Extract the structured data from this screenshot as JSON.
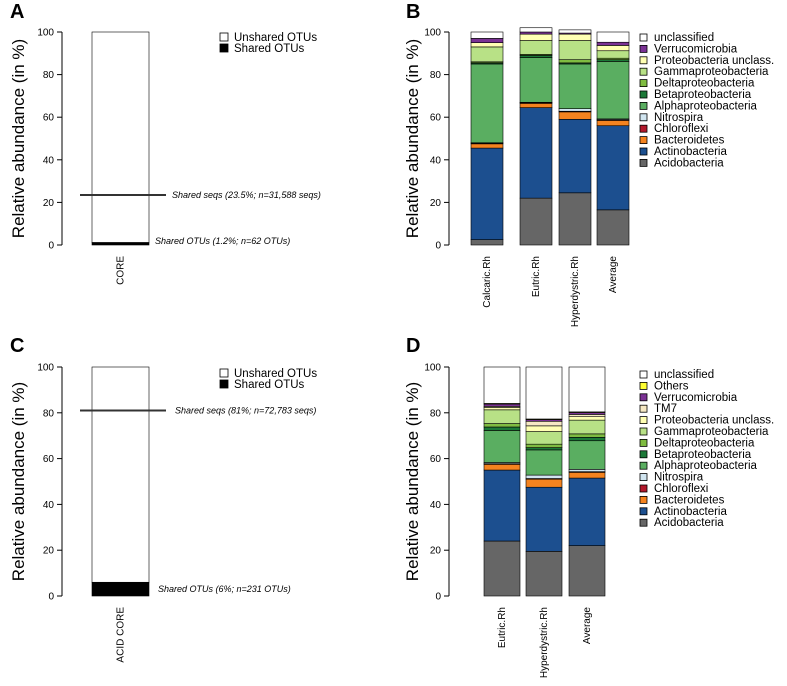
{
  "colors": {
    "unclassified": "#ffffff",
    "Others": "#ffff33",
    "Verrucomicrobia": "#7b3294",
    "TM7": "#f6e8c3",
    "Proteobacteria unclass.": "#ffffb3",
    "Gammaproteobacteria": "#b8e186",
    "Deltaproteobacteria": "#7fbc41",
    "Betaproteobacteria": "#1b7837",
    "Alphaproteobacteria": "#5aae61",
    "Nitrospira": "#d1e5f0",
    "Chloroflexi": "#b2182b",
    "Bacteroidetes": "#f4831f",
    "Actinobacteria": "#1c4f8f",
    "Acidobacteria": "#666666",
    "Unshared OTUs": "#ffffff",
    "Shared OTUs": "#000000"
  },
  "chart_data": [
    {
      "id": "A",
      "type": "bar",
      "letter": "A",
      "ylabel": "Relative abundance (in %)",
      "ylim": [
        0,
        100
      ],
      "yticks": [
        "0",
        "20",
        "40",
        "60",
        "80",
        "100"
      ],
      "categories": [
        "CORE"
      ],
      "series": [
        {
          "name": "Shared OTUs",
          "values": [
            1.2
          ]
        },
        {
          "name": "Unshared OTUs",
          "values": [
            98.8
          ]
        }
      ],
      "legend": [
        "Unshared OTUs",
        "Shared OTUs"
      ],
      "legend_position": "top-right",
      "reference_line": {
        "value": 23.5,
        "label": "Shared seqs (23.5%; n=31,588 seqs)"
      },
      "bar_annotation": "Shared OTUs (1.2%; n=62 OTUs)"
    },
    {
      "id": "B",
      "type": "bar",
      "letter": "B",
      "ylabel": "Relative abundance (in %)",
      "ylim": [
        0,
        100
      ],
      "yticks": [
        "0",
        "20",
        "40",
        "60",
        "80",
        "100"
      ],
      "categories": [
        "Calcaric.Rh",
        "Eutric.Rh",
        "Hyperdystric.Rh",
        "Average"
      ],
      "series": [
        {
          "name": "Acidobacteria",
          "values": [
            2.5,
            22,
            24.5,
            16.5
          ]
        },
        {
          "name": "Actinobacteria",
          "values": [
            43,
            42.5,
            34.5,
            39.5
          ]
        },
        {
          "name": "Bacteroidetes",
          "values": [
            2,
            2,
            3.5,
            2.5
          ]
        },
        {
          "name": "Chloroflexi",
          "values": [
            0.3,
            0.3,
            0.3,
            0.3
          ]
        },
        {
          "name": "Nitrospira",
          "values": [
            0.2,
            0.2,
            1.2,
            0.4
          ]
        },
        {
          "name": "Alphaproteobacteria",
          "values": [
            37,
            21,
            21,
            27
          ]
        },
        {
          "name": "Betaproteobacteria",
          "values": [
            0.5,
            1,
            0.5,
            0.8
          ]
        },
        {
          "name": "Deltaproteobacteria",
          "values": [
            0.5,
            0.5,
            1.5,
            0.7
          ]
        },
        {
          "name": "Gammaproteobacteria",
          "values": [
            7,
            6.5,
            9,
            3.5
          ]
        },
        {
          "name": "Proteobacteria unclass.",
          "values": [
            2,
            3,
            3,
            2.5
          ]
        },
        {
          "name": "Verrucomicrobia",
          "values": [
            2,
            1,
            0.5,
            1.5
          ]
        },
        {
          "name": "unclassified",
          "values": [
            3,
            2,
            1.5,
            4.8
          ]
        }
      ],
      "legend": [
        "unclassified",
        "Verrucomicrobia",
        "Proteobacteria unclass.",
        "Gammaproteobacteria",
        "Deltaproteobacteria",
        "Betaproteobacteria",
        "Alphaproteobacteria",
        "Nitrospira",
        "Chloroflexi",
        "Bacteroidetes",
        "Actinobacteria",
        "Acidobacteria"
      ],
      "legend_position": "right"
    },
    {
      "id": "C",
      "type": "bar",
      "letter": "C",
      "ylabel": "Relative abundance (in %)",
      "ylim": [
        0,
        100
      ],
      "yticks": [
        "0",
        "20",
        "40",
        "60",
        "80",
        "100"
      ],
      "categories": [
        "ACID CORE"
      ],
      "series": [
        {
          "name": "Shared OTUs",
          "values": [
            6
          ]
        },
        {
          "name": "Unshared OTUs",
          "values": [
            94
          ]
        }
      ],
      "legend": [
        "Unshared OTUs",
        "Shared OTUs"
      ],
      "legend_position": "top-right",
      "reference_line": {
        "value": 81,
        "label": "Shared seqs (81%; n=72,783 seqs)"
      },
      "bar_annotation": "Shared OTUs (6%; n=231 OTUs)"
    },
    {
      "id": "D",
      "type": "bar",
      "letter": "D",
      "ylabel": "Relative abundance (in %)",
      "ylim": [
        0,
        100
      ],
      "yticks": [
        "0",
        "20",
        "40",
        "60",
        "80",
        "100"
      ],
      "categories": [
        "Eutric.Rh",
        "Hyperdystric.Rh",
        "Average"
      ],
      "series": [
        {
          "name": "Acidobacteria",
          "values": [
            24,
            19.5,
            22
          ]
        },
        {
          "name": "Actinobacteria",
          "values": [
            31,
            28,
            29.5
          ]
        },
        {
          "name": "Bacteroidetes",
          "values": [
            2.5,
            3.5,
            2.5
          ]
        },
        {
          "name": "Chloroflexi",
          "values": [
            0.3,
            0.3,
            0.3
          ]
        },
        {
          "name": "Nitrospira",
          "values": [
            0.5,
            1.5,
            1
          ]
        },
        {
          "name": "Alphaproteobacteria",
          "values": [
            14,
            11,
            12.5
          ]
        },
        {
          "name": "Betaproteobacteria",
          "values": [
            1.5,
            1,
            1.5
          ]
        },
        {
          "name": "Deltaproteobacteria",
          "values": [
            1.5,
            1.5,
            1.5
          ]
        },
        {
          "name": "Gammaproteobacteria",
          "values": [
            6,
            5.5,
            6
          ]
        },
        {
          "name": "Proteobacteria unclass.",
          "values": [
            1,
            2.5,
            1.5
          ]
        },
        {
          "name": "TM7",
          "values": [
            0.5,
            2,
            1
          ]
        },
        {
          "name": "Verrucomicrobia",
          "values": [
            1,
            0.7,
            0.8
          ]
        },
        {
          "name": "Others",
          "values": [
            0.3,
            0.3,
            0.3
          ]
        },
        {
          "name": "unclassified",
          "values": [
            15.9,
            22.7,
            19.6
          ]
        }
      ],
      "legend": [
        "unclassified",
        "Others",
        "Verrucomicrobia",
        "TM7",
        "Proteobacteria unclass.",
        "Gammaproteobacteria",
        "Deltaproteobacteria",
        "Betaproteobacteria",
        "Alphaproteobacteria",
        "Nitrospira",
        "Chloroflexi",
        "Bacteroidetes",
        "Actinobacteria",
        "Acidobacteria"
      ],
      "legend_position": "right"
    }
  ]
}
